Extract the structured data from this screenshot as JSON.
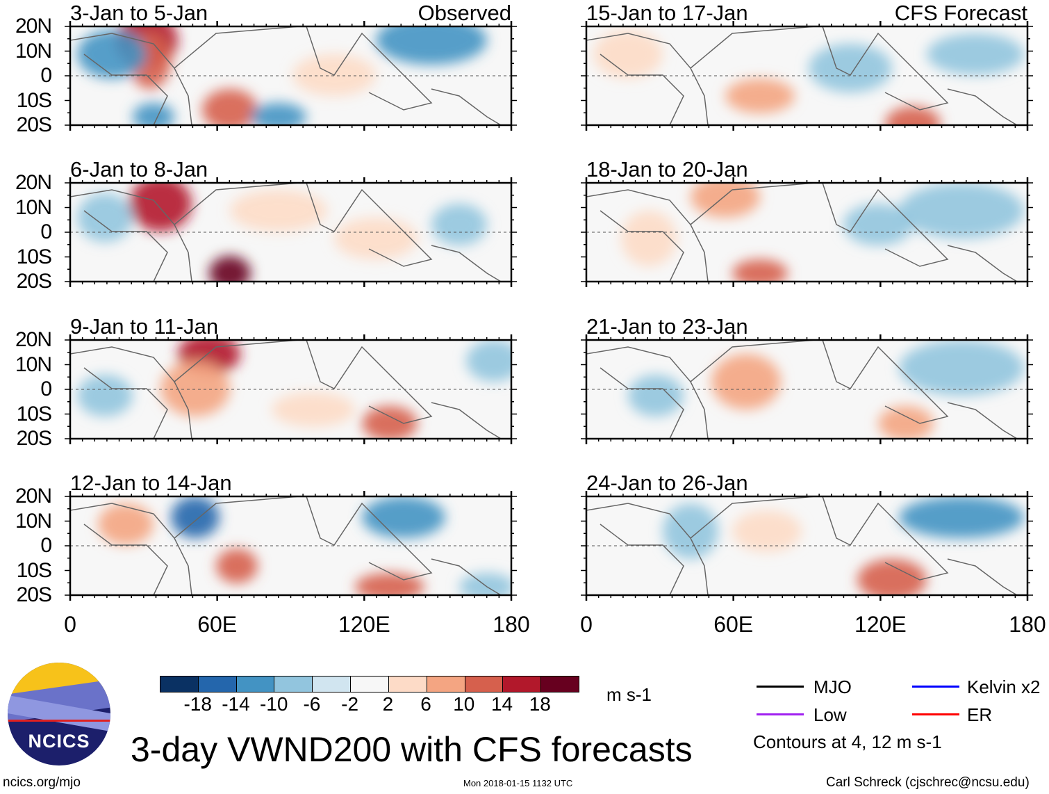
{
  "figure": {
    "title": "3-day VWND200 with CFS forecasts",
    "left_column_label": "Observed",
    "right_column_label": "CFS Forecast",
    "panels_left": [
      {
        "title": "3-Jan to 5-Jan"
      },
      {
        "title": "6-Jan to 8-Jan"
      },
      {
        "title": "9-Jan to 11-Jan"
      },
      {
        "title": "12-Jan to 14-Jan"
      }
    ],
    "panels_right": [
      {
        "title": "15-Jan to 17-Jan"
      },
      {
        "title": "18-Jan to 20-Jan"
      },
      {
        "title": "21-Jan to 23-Jan"
      },
      {
        "title": "24-Jan to 26-Jan"
      }
    ],
    "lat_labels": [
      "20N",
      "10N",
      "0",
      "10S",
      "20S"
    ],
    "lon_labels": [
      "0",
      "60E",
      "120E",
      "180"
    ]
  },
  "colorbar": {
    "levels": [
      "-18",
      "-14",
      "-10",
      "-6",
      "-2",
      "2",
      "6",
      "10",
      "14",
      "18"
    ],
    "colors": [
      "#0a3163",
      "#2466ac",
      "#4393c3",
      "#92c5de",
      "#d1e5f0",
      "#f7f7f7",
      "#fddbc7",
      "#f4a582",
      "#d6604d",
      "#b2182b",
      "#67001f"
    ],
    "units": "m s-1"
  },
  "legend": {
    "items": [
      {
        "label": "MJO",
        "color": "#000000"
      },
      {
        "label": "Kelvin x2",
        "color": "#0000ff"
      },
      {
        "label": "Low",
        "color": "#a020f0"
      },
      {
        "label": "ER",
        "color": "#ff0000"
      }
    ],
    "contours_note": "Contours at 4, 12 m s-1"
  },
  "logo": {
    "text": "NCICS"
  },
  "footer": {
    "url": "ncics.org/mjo",
    "timestamp": "Mon 2018-01-15 1132 UTC",
    "author": "Carl Schreck (cjschrec@ncsu.edu)"
  }
}
